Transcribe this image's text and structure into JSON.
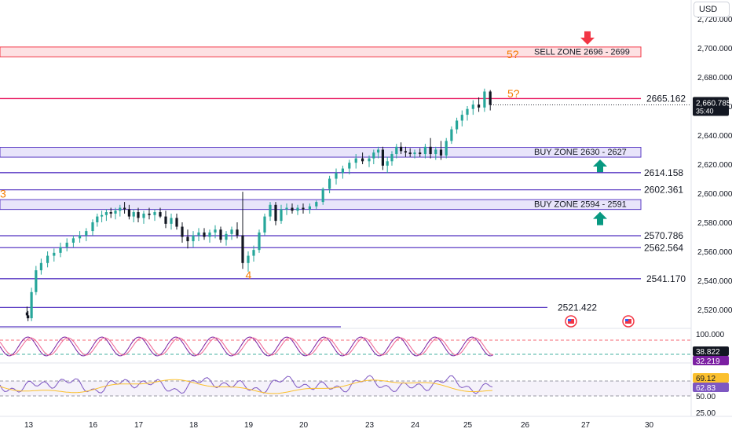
{
  "currency": "USD",
  "chart_data": {
    "type": "candlestick",
    "y_ticks": [
      "2,720.000",
      "2,700.000",
      "2,680.000",
      "2,660.000",
      "2,640.000",
      "2,620.000",
      "2,600.000",
      "2,580.000",
      "2,560.000",
      "2,540.000",
      "2,520.000"
    ],
    "ylim": [
      2511,
      2726
    ],
    "x_ticks": [
      "13",
      "16",
      "17",
      "18",
      "19",
      "20",
      "23",
      "24",
      "25",
      "26",
      "27",
      "30"
    ],
    "current_price": "2,660.785",
    "countdown": "35:40",
    "zones": [
      {
        "label": "SELL ZONE 2696 - 2699",
        "low": 2696,
        "high": 2699,
        "color": "#f23645",
        "arrow": "down"
      },
      {
        "label": "BUY ZONE 2630 - 2627",
        "low": 2627,
        "high": 2630,
        "color": "#2962ff",
        "arrow": "up"
      },
      {
        "label": "BUY ZONE 2594 - 2591",
        "low": 2591,
        "high": 2594,
        "color": "#2962ff",
        "arrow": "up"
      }
    ],
    "levels": [
      {
        "label": "2665.162",
        "value": 2665.162,
        "color": "#e91e63"
      },
      {
        "label": "2614.158",
        "value": 2614.158,
        "color": "#5b3cc4"
      },
      {
        "label": "2602.361",
        "value": 2602.361,
        "color": "#5b3cc4"
      },
      {
        "label": "2570.786",
        "value": 2570.786,
        "color": "#5b3cc4"
      },
      {
        "label": "2562.564",
        "value": 2562.564,
        "color": "#5b3cc4"
      },
      {
        "label": "2541.170",
        "value": 2541.17,
        "color": "#5b3cc4"
      },
      {
        "label": "2521.422",
        "value": 2521.422,
        "color": "#5b3cc4"
      }
    ],
    "wave_labels": [
      {
        "text": "3",
        "x": 15.75,
        "y": 2597
      },
      {
        "text": "4",
        "x": 18.95,
        "y": 2541
      },
      {
        "text": "5?",
        "x": 25.3,
        "y": 2669
      },
      {
        "text": "5?",
        "x": 25.3,
        "y": 2695
      }
    ],
    "candles": [
      {
        "x": 12.9,
        "o": 2518,
        "h": 2522,
        "l": 2514,
        "c": 2516
      },
      {
        "x": 12.98,
        "o": 2516,
        "h": 2519,
        "l": 2512,
        "c": 2514
      },
      {
        "x": 13.05,
        "o": 2514,
        "h": 2535,
        "l": 2512,
        "c": 2532
      },
      {
        "x": 13.12,
        "o": 2532,
        "h": 2550,
        "l": 2530,
        "c": 2547
      },
      {
        "x": 13.2,
        "o": 2547,
        "h": 2555,
        "l": 2544,
        "c": 2552
      },
      {
        "x": 13.3,
        "o": 2552,
        "h": 2560,
        "l": 2549,
        "c": 2557
      },
      {
        "x": 13.4,
        "o": 2557,
        "h": 2562,
        "l": 2553,
        "c": 2559
      },
      {
        "x": 13.5,
        "o": 2559,
        "h": 2566,
        "l": 2556,
        "c": 2563
      },
      {
        "x": 13.6,
        "o": 2563,
        "h": 2569,
        "l": 2560,
        "c": 2566
      },
      {
        "x": 13.7,
        "o": 2566,
        "h": 2571,
        "l": 2563,
        "c": 2569
      },
      {
        "x": 13.8,
        "o": 2569,
        "h": 2574,
        "l": 2566,
        "c": 2571
      },
      {
        "x": 13.9,
        "o": 2571,
        "h": 2576,
        "l": 2567,
        "c": 2574
      },
      {
        "x": 16.0,
        "o": 2574,
        "h": 2582,
        "l": 2571,
        "c": 2580
      },
      {
        "x": 16.1,
        "o": 2580,
        "h": 2586,
        "l": 2577,
        "c": 2584
      },
      {
        "x": 16.2,
        "o": 2584,
        "h": 2588,
        "l": 2580,
        "c": 2585
      },
      {
        "x": 16.3,
        "o": 2585,
        "h": 2589,
        "l": 2581,
        "c": 2587
      },
      {
        "x": 16.4,
        "o": 2587,
        "h": 2590,
        "l": 2583,
        "c": 2586
      },
      {
        "x": 16.5,
        "o": 2586,
        "h": 2590,
        "l": 2582,
        "c": 2588
      },
      {
        "x": 16.6,
        "o": 2588,
        "h": 2592,
        "l": 2584,
        "c": 2590
      },
      {
        "x": 16.7,
        "o": 2590,
        "h": 2594,
        "l": 2586,
        "c": 2589
      },
      {
        "x": 16.8,
        "o": 2589,
        "h": 2592,
        "l": 2582,
        "c": 2584
      },
      {
        "x": 16.9,
        "o": 2584,
        "h": 2589,
        "l": 2580,
        "c": 2587
      },
      {
        "x": 17.0,
        "o": 2587,
        "h": 2590,
        "l": 2580,
        "c": 2583
      },
      {
        "x": 17.1,
        "o": 2583,
        "h": 2588,
        "l": 2579,
        "c": 2586
      },
      {
        "x": 17.2,
        "o": 2586,
        "h": 2590,
        "l": 2582,
        "c": 2585
      },
      {
        "x": 17.3,
        "o": 2585,
        "h": 2589,
        "l": 2581,
        "c": 2587
      },
      {
        "x": 17.4,
        "o": 2587,
        "h": 2590,
        "l": 2583,
        "c": 2584
      },
      {
        "x": 17.5,
        "o": 2584,
        "h": 2588,
        "l": 2576,
        "c": 2579
      },
      {
        "x": 17.6,
        "o": 2579,
        "h": 2586,
        "l": 2575,
        "c": 2583
      },
      {
        "x": 17.7,
        "o": 2583,
        "h": 2586,
        "l": 2575,
        "c": 2577
      },
      {
        "x": 17.8,
        "o": 2577,
        "h": 2580,
        "l": 2566,
        "c": 2570
      },
      {
        "x": 17.9,
        "o": 2570,
        "h": 2575,
        "l": 2562,
        "c": 2567
      },
      {
        "x": 18.0,
        "o": 2567,
        "h": 2574,
        "l": 2563,
        "c": 2571
      },
      {
        "x": 18.1,
        "o": 2571,
        "h": 2576,
        "l": 2567,
        "c": 2573
      },
      {
        "x": 18.2,
        "o": 2573,
        "h": 2576,
        "l": 2568,
        "c": 2570
      },
      {
        "x": 18.3,
        "o": 2570,
        "h": 2575,
        "l": 2566,
        "c": 2573
      },
      {
        "x": 18.4,
        "o": 2573,
        "h": 2578,
        "l": 2569,
        "c": 2575
      },
      {
        "x": 18.5,
        "o": 2575,
        "h": 2577,
        "l": 2566,
        "c": 2568
      },
      {
        "x": 18.6,
        "o": 2568,
        "h": 2574,
        "l": 2564,
        "c": 2572
      },
      {
        "x": 18.7,
        "o": 2572,
        "h": 2577,
        "l": 2568,
        "c": 2575
      },
      {
        "x": 18.8,
        "o": 2575,
        "h": 2580,
        "l": 2569,
        "c": 2571
      },
      {
        "x": 18.9,
        "o": 2571,
        "h": 2601,
        "l": 2548,
        "c": 2552
      },
      {
        "x": 19.0,
        "o": 2552,
        "h": 2560,
        "l": 2546,
        "c": 2557
      },
      {
        "x": 19.1,
        "o": 2557,
        "h": 2564,
        "l": 2553,
        "c": 2561
      },
      {
        "x": 19.2,
        "o": 2561,
        "h": 2575,
        "l": 2559,
        "c": 2573
      },
      {
        "x": 19.3,
        "o": 2573,
        "h": 2586,
        "l": 2571,
        "c": 2584
      },
      {
        "x": 19.4,
        "o": 2584,
        "h": 2594,
        "l": 2581,
        "c": 2592
      },
      {
        "x": 19.5,
        "o": 2592,
        "h": 2594,
        "l": 2578,
        "c": 2581
      },
      {
        "x": 19.6,
        "o": 2581,
        "h": 2592,
        "l": 2579,
        "c": 2589
      },
      {
        "x": 19.7,
        "o": 2589,
        "h": 2593,
        "l": 2585,
        "c": 2590
      },
      {
        "x": 19.8,
        "o": 2590,
        "h": 2593,
        "l": 2586,
        "c": 2588
      },
      {
        "x": 19.9,
        "o": 2588,
        "h": 2592,
        "l": 2585,
        "c": 2590
      },
      {
        "x": 20.0,
        "o": 2590,
        "h": 2593,
        "l": 2586,
        "c": 2589
      },
      {
        "x": 20.1,
        "o": 2589,
        "h": 2593,
        "l": 2586,
        "c": 2591
      },
      {
        "x": 20.2,
        "o": 2591,
        "h": 2595,
        "l": 2589,
        "c": 2594
      },
      {
        "x": 20.3,
        "o": 2594,
        "h": 2604,
        "l": 2592,
        "c": 2603
      },
      {
        "x": 20.4,
        "o": 2603,
        "h": 2612,
        "l": 2600,
        "c": 2610
      },
      {
        "x": 20.5,
        "o": 2610,
        "h": 2617,
        "l": 2606,
        "c": 2614
      },
      {
        "x": 20.6,
        "o": 2614,
        "h": 2619,
        "l": 2610,
        "c": 2617
      },
      {
        "x": 20.7,
        "o": 2617,
        "h": 2623,
        "l": 2613,
        "c": 2621
      },
      {
        "x": 20.8,
        "o": 2621,
        "h": 2627,
        "l": 2617,
        "c": 2624
      },
      {
        "x": 20.9,
        "o": 2624,
        "h": 2628,
        "l": 2620,
        "c": 2622
      },
      {
        "x": 23.0,
        "o": 2622,
        "h": 2626,
        "l": 2618,
        "c": 2624
      },
      {
        "x": 23.1,
        "o": 2624,
        "h": 2630,
        "l": 2620,
        "c": 2628
      },
      {
        "x": 23.2,
        "o": 2628,
        "h": 2632,
        "l": 2624,
        "c": 2630
      },
      {
        "x": 23.3,
        "o": 2630,
        "h": 2632,
        "l": 2616,
        "c": 2619
      },
      {
        "x": 23.4,
        "o": 2619,
        "h": 2625,
        "l": 2614,
        "c": 2622
      },
      {
        "x": 23.5,
        "o": 2622,
        "h": 2629,
        "l": 2619,
        "c": 2627
      },
      {
        "x": 23.6,
        "o": 2627,
        "h": 2634,
        "l": 2624,
        "c": 2632
      },
      {
        "x": 23.7,
        "o": 2632,
        "h": 2635,
        "l": 2627,
        "c": 2629
      },
      {
        "x": 23.8,
        "o": 2629,
        "h": 2632,
        "l": 2625,
        "c": 2628
      },
      {
        "x": 23.9,
        "o": 2628,
        "h": 2631,
        "l": 2625,
        "c": 2627
      },
      {
        "x": 24.0,
        "o": 2627,
        "h": 2630,
        "l": 2624,
        "c": 2628
      },
      {
        "x": 24.1,
        "o": 2628,
        "h": 2631,
        "l": 2625,
        "c": 2627
      },
      {
        "x": 24.2,
        "o": 2627,
        "h": 2634,
        "l": 2624,
        "c": 2632
      },
      {
        "x": 24.3,
        "o": 2632,
        "h": 2638,
        "l": 2624,
        "c": 2627
      },
      {
        "x": 24.4,
        "o": 2627,
        "h": 2632,
        "l": 2623,
        "c": 2630
      },
      {
        "x": 24.5,
        "o": 2630,
        "h": 2636,
        "l": 2623,
        "c": 2626
      },
      {
        "x": 24.6,
        "o": 2626,
        "h": 2638,
        "l": 2624,
        "c": 2636
      },
      {
        "x": 24.7,
        "o": 2636,
        "h": 2646,
        "l": 2634,
        "c": 2644
      },
      {
        "x": 24.8,
        "o": 2644,
        "h": 2652,
        "l": 2641,
        "c": 2650
      },
      {
        "x": 24.9,
        "o": 2650,
        "h": 2657,
        "l": 2646,
        "c": 2654
      },
      {
        "x": 25.0,
        "o": 2654,
        "h": 2660,
        "l": 2650,
        "c": 2658
      },
      {
        "x": 25.1,
        "o": 2658,
        "h": 2664,
        "l": 2654,
        "c": 2661
      },
      {
        "x": 25.2,
        "o": 2661,
        "h": 2666,
        "l": 2656,
        "c": 2659
      },
      {
        "x": 25.3,
        "o": 2659,
        "h": 2672,
        "l": 2656,
        "c": 2670
      },
      {
        "x": 25.4,
        "o": 2670,
        "h": 2671,
        "l": 2657,
        "c": 2660.785
      }
    ],
    "osc1": {
      "ticks": [
        "100.000"
      ],
      "values": [
        "38.822",
        "32.219"
      ]
    },
    "osc2": {
      "ticks": [
        "50.00",
        "25.00"
      ],
      "values": [
        "69.12",
        "62.83"
      ]
    }
  }
}
